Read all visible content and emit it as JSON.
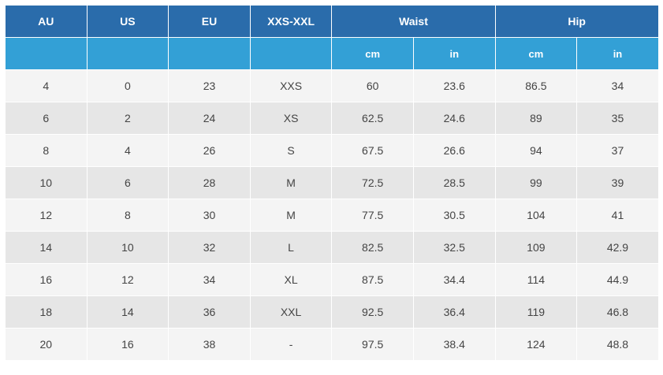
{
  "header": {
    "top": {
      "au": "AU",
      "us": "US",
      "eu": "EU",
      "xxs_xxl": "XXS-XXL",
      "waist": "Waist",
      "hip": "Hip"
    },
    "sub": {
      "au": "",
      "us": "",
      "eu": "",
      "xxs_xxl": "",
      "waist_cm": "cm",
      "waist_in": "in",
      "hip_cm": "cm",
      "hip_in": "in"
    }
  },
  "colors": {
    "header_dark": "#2a6cab",
    "header_light": "#33a0d6",
    "row_light": "#f4f4f4",
    "row_dark": "#e6e6e6",
    "text": "#444444"
  },
  "rows": [
    [
      "4",
      "0",
      "23",
      "XXS",
      "60",
      "23.6",
      "86.5",
      "34"
    ],
    [
      "6",
      "2",
      "24",
      "XS",
      "62.5",
      "24.6",
      "89",
      "35"
    ],
    [
      "8",
      "4",
      "26",
      "S",
      "67.5",
      "26.6",
      "94",
      "37"
    ],
    [
      "10",
      "6",
      "28",
      "M",
      "72.5",
      "28.5",
      "99",
      "39"
    ],
    [
      "12",
      "8",
      "30",
      "M",
      "77.5",
      "30.5",
      "104",
      "41"
    ],
    [
      "14",
      "10",
      "32",
      "L",
      "82.5",
      "32.5",
      "109",
      "42.9"
    ],
    [
      "16",
      "12",
      "34",
      "XL",
      "87.5",
      "34.4",
      "114",
      "44.9"
    ],
    [
      "18",
      "14",
      "36",
      "XXL",
      "92.5",
      "36.4",
      "119",
      "46.8"
    ],
    [
      "20",
      "16",
      "38",
      "-",
      "97.5",
      "38.4",
      "124",
      "48.8"
    ]
  ]
}
